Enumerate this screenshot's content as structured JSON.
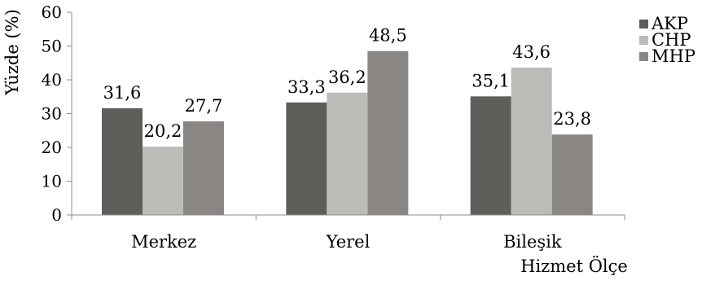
{
  "chart_data": {
    "type": "bar",
    "categories": [
      "Merkez",
      "Yerel",
      "Bileşik"
    ],
    "series": [
      {
        "name": "AKP",
        "values": [
          31.6,
          33.3,
          35.1
        ],
        "color": "#5f5e5b"
      },
      {
        "name": "CHP",
        "values": [
          20.2,
          36.2,
          43.6
        ],
        "color": "#bdbbb8"
      },
      {
        "name": "MHP",
        "values": [
          27.7,
          48.5,
          23.8
        ],
        "color": "#898683"
      }
    ],
    "data_labels": [
      [
        "31,6",
        "33,3",
        "35,1"
      ],
      [
        "20,2",
        "36,2",
        "43,6"
      ],
      [
        "27,7",
        "48,5",
        "23,8"
      ]
    ],
    "ylabel": "Yüzde (%)",
    "xlabel": "Hizmet Ölçe",
    "ylim": [
      0,
      60
    ],
    "yticks": [
      0,
      10,
      20,
      30,
      40,
      50,
      60
    ],
    "grid": false,
    "legend_position": "right"
  }
}
